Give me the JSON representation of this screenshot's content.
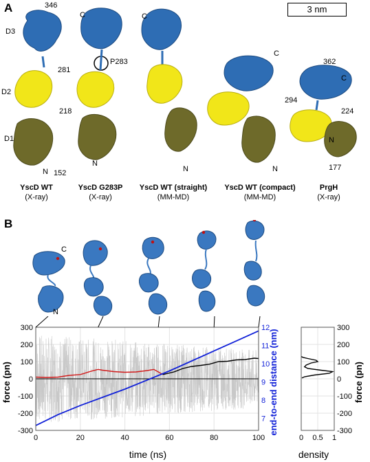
{
  "panel_a_label": "A",
  "panel_b_label": "B",
  "scale_bar": "3 nm",
  "structures": [
    {
      "name": "YscD WT",
      "method": "(X-ray)",
      "labels": [
        "346",
        "D3",
        "281",
        "D2",
        "218",
        "D1",
        "N",
        "152"
      ]
    },
    {
      "name": "YscD G283P",
      "method": "(X-ray)",
      "labels": [
        "C",
        "P283",
        "N"
      ]
    },
    {
      "name": "YscD WT (straight)",
      "method": "(MM-MD)",
      "labels": [
        "C",
        "N"
      ]
    },
    {
      "name": "YscD WT  (compact)",
      "method": "(MM-MD)",
      "labels": [
        "C",
        "N"
      ]
    },
    {
      "name": "PrgH",
      "method": "(X-ray)",
      "labels": [
        "362",
        "C",
        "294",
        "224",
        "N",
        "177"
      ]
    }
  ],
  "snapshot_labels": {
    "c": "C",
    "n": "N"
  },
  "colors": {
    "d3": "#2e6db4",
    "d2": "#f1e619",
    "d1": "#6e6a2a",
    "force_red": "#d11a1a",
    "force_black": "#000000",
    "distance_blue": "#1020d8",
    "raw_grey": "#c8c8c8"
  },
  "chart_data": [
    {
      "type": "line",
      "xlabel": "time (ns)",
      "ylabel": "force (pn)",
      "y2label": "end-to-end distance (nm)",
      "xlim": [
        0,
        100
      ],
      "ylim": [
        -300,
        300
      ],
      "y2lim": [
        6.333,
        12
      ],
      "xticks": [
        "0",
        "20",
        "40",
        "60",
        "80",
        "100"
      ],
      "yticks": [
        "300",
        "200",
        "100",
        "0",
        "-100",
        "-200",
        "-300"
      ],
      "y2ticks": [
        "12",
        "11",
        "10",
        "9",
        "8",
        "7"
      ],
      "grid": true,
      "series": [
        {
          "key": "force_avg_phase1",
          "color": "#d11a1a",
          "axis": "left",
          "x": [
            0,
            5,
            10,
            15,
            20,
            25,
            28,
            30,
            35,
            40,
            45,
            50,
            53,
            55,
            57
          ],
          "y": [
            10,
            8,
            10,
            20,
            25,
            45,
            55,
            50,
            42,
            38,
            40,
            48,
            55,
            40,
            25
          ]
        },
        {
          "key": "force_avg_phase2",
          "color": "#000000",
          "axis": "left",
          "x": [
            57,
            62,
            66,
            70,
            74,
            78,
            82,
            86,
            90,
            94,
            98,
            100
          ],
          "y": [
            25,
            40,
            60,
            72,
            78,
            85,
            100,
            102,
            110,
            112,
            120,
            118
          ]
        },
        {
          "key": "end_to_end_distance",
          "color": "#1020d8",
          "axis": "right",
          "x": [
            0,
            10,
            20,
            30,
            40,
            50,
            60,
            70,
            80,
            90,
            100
          ],
          "y": [
            6.6,
            7.2,
            7.7,
            8.15,
            8.6,
            9.1,
            9.6,
            10.15,
            10.7,
            11.25,
            11.8
          ]
        }
      ]
    },
    {
      "type": "line",
      "xlabel": "density",
      "ylabel": "force (pn)",
      "xlim": [
        0,
        1
      ],
      "ylim": [
        -300,
        300
      ],
      "xticks": [
        "0",
        "0.5",
        "1"
      ],
      "yticks": [
        "300",
        "200",
        "100",
        "0",
        "-100",
        "-200",
        "-300"
      ],
      "grid": true,
      "series": [
        {
          "key": "force_density",
          "color": "#000000",
          "x": [
            0,
            0.05,
            0.2,
            0.45,
            0.5,
            0.3,
            0.15,
            0.1,
            0.2,
            0.6,
            0.95,
            0.85,
            0.4,
            0.1,
            0.02
          ],
          "y": [
            130,
            125,
            118,
            108,
            100,
            92,
            80,
            70,
            60,
            50,
            42,
            32,
            22,
            12,
            5
          ]
        }
      ]
    }
  ]
}
